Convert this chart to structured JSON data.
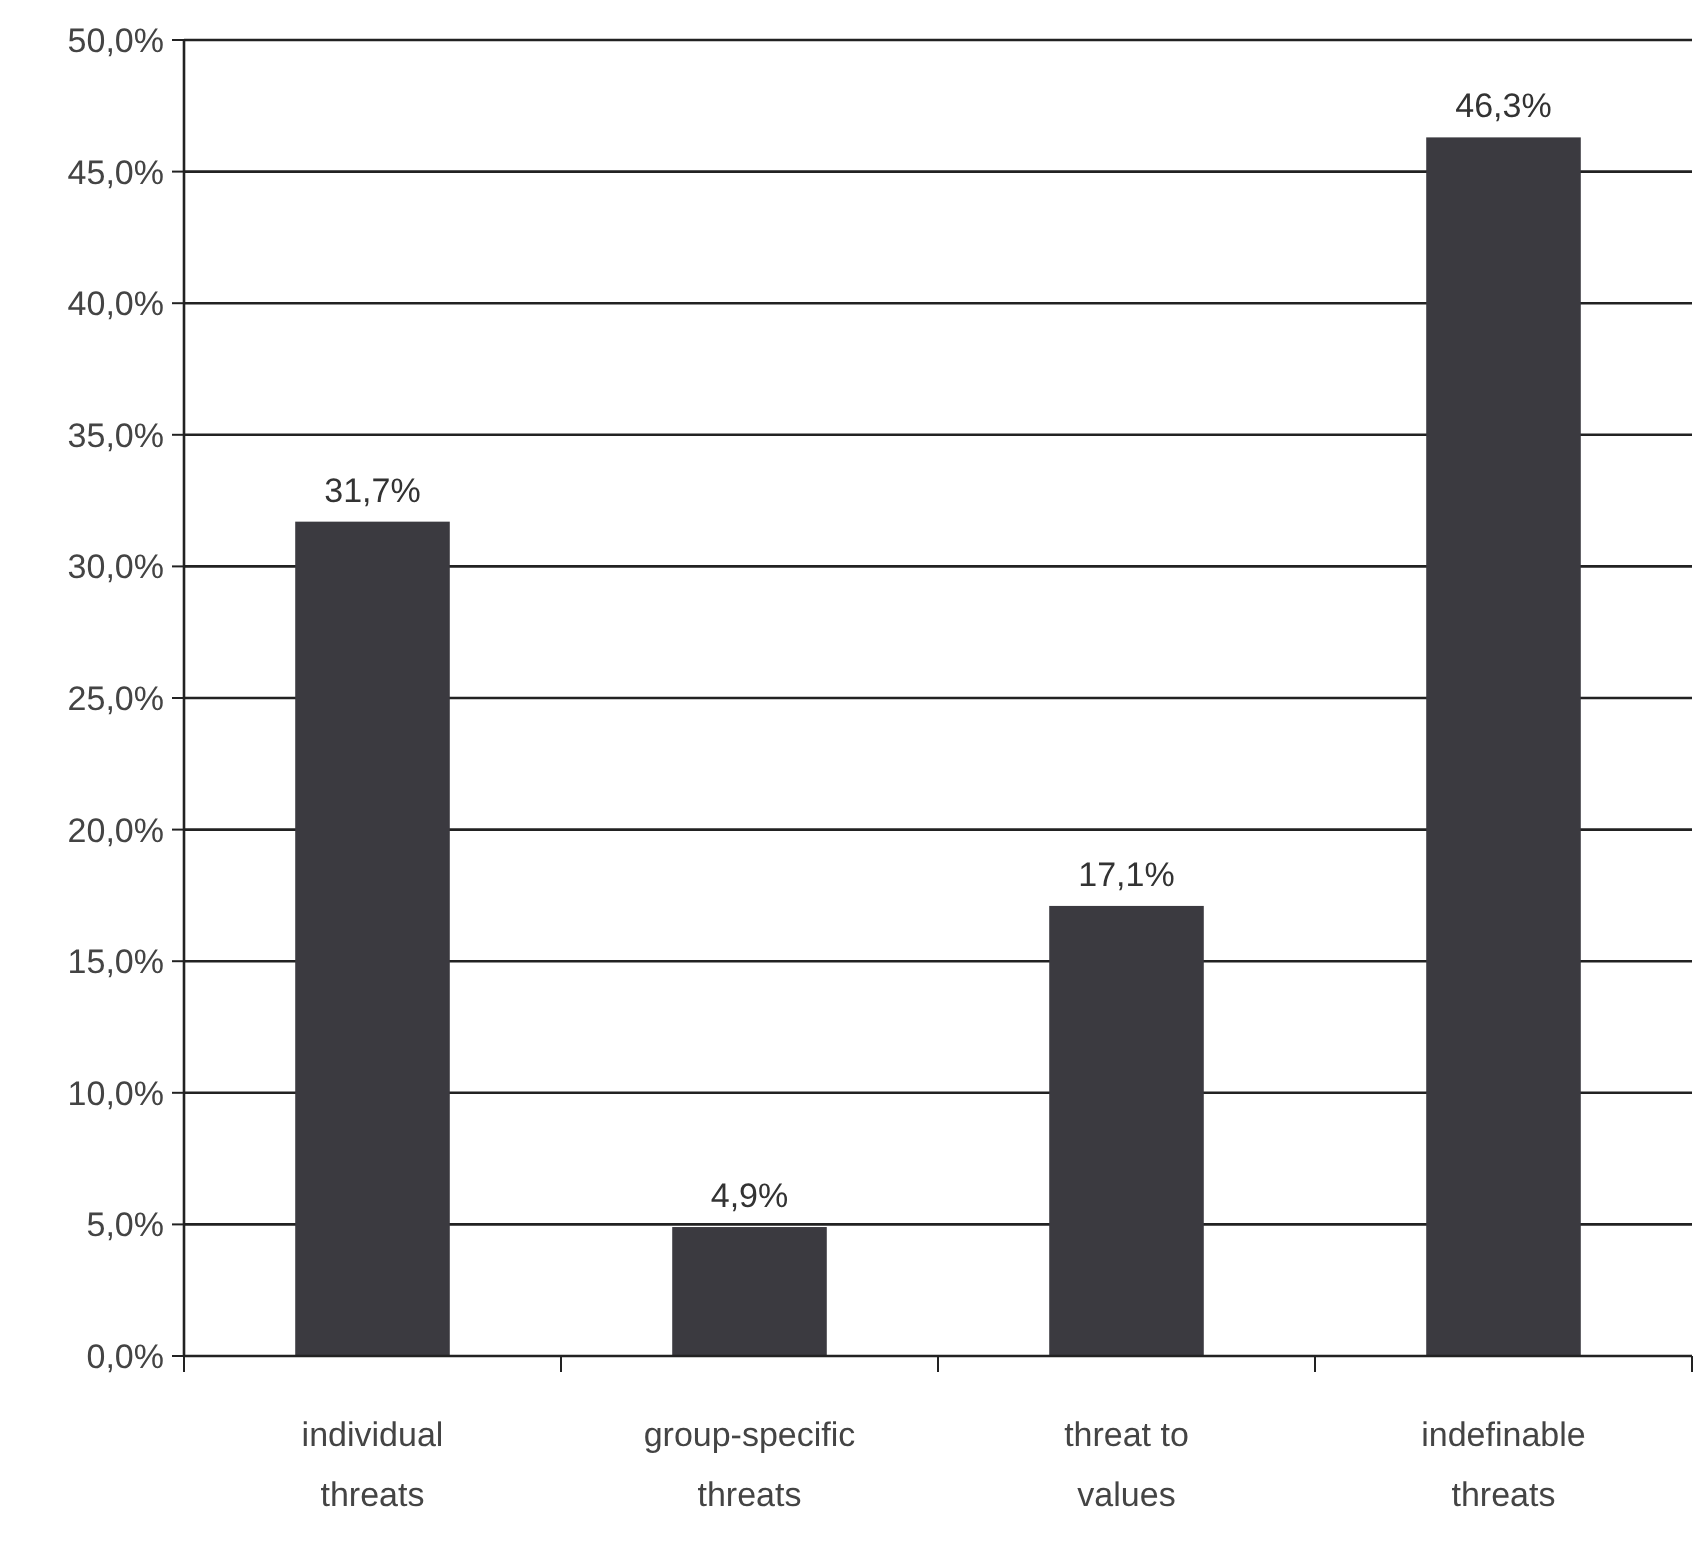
{
  "chart_data": {
    "type": "bar",
    "categories": [
      "individual threats",
      "group-specific threats",
      "threat to values",
      "indefinable threats"
    ],
    "values": [
      31.7,
      4.9,
      17.1,
      46.3
    ],
    "value_labels": [
      "31,7%",
      "4,9%",
      "17,1%",
      "46,3%"
    ],
    "color": "#3b3a40",
    "ylim": [
      0,
      50
    ],
    "yticks": [
      {
        "value": 0,
        "label": "0,0%"
      },
      {
        "value": 5,
        "label": "5,0%"
      },
      {
        "value": 10,
        "label": "10,0%"
      },
      {
        "value": 15,
        "label": "15,0%"
      },
      {
        "value": 20,
        "label": "20,0%"
      },
      {
        "value": 25,
        "label": "25,0%"
      },
      {
        "value": 30,
        "label": "30,0%"
      },
      {
        "value": 35,
        "label": "35,0%"
      },
      {
        "value": 40,
        "label": "40,0%"
      },
      {
        "value": 45,
        "label": "45,0%"
      },
      {
        "value": 50,
        "label": "50,0%"
      }
    ],
    "grid": "y"
  }
}
